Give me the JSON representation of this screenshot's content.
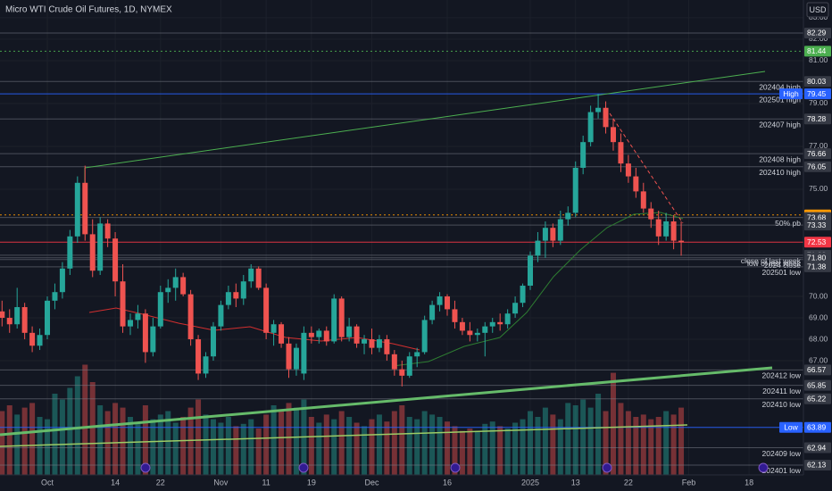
{
  "header": {
    "title": "Micro WTI Crude Oil Futures, 1D, NYMEX",
    "currency": "USD"
  },
  "chart_data": {
    "type": "candlestick",
    "colors": {
      "up": "#26a69a",
      "down": "#ef5350"
    },
    "candles": [
      [
        69.3,
        69.8,
        68.6,
        69.0
      ],
      [
        69.0,
        69.4,
        68.3,
        68.7
      ],
      [
        68.7,
        70.4,
        68.5,
        69.5
      ],
      [
        69.5,
        69.7,
        68.0,
        68.3
      ],
      [
        68.3,
        68.6,
        67.4,
        67.7
      ],
      [
        67.7,
        68.5,
        67.5,
        68.2
      ],
      [
        68.2,
        70.0,
        68.0,
        69.8
      ],
      [
        69.8,
        70.6,
        69.4,
        70.2
      ],
      [
        70.2,
        71.6,
        69.9,
        71.3
      ],
      [
        71.3,
        73.1,
        71.0,
        72.8
      ],
      [
        72.8,
        75.6,
        72.5,
        75.3
      ],
      [
        75.3,
        76.1,
        72.6,
        72.9
      ],
      [
        72.9,
        73.6,
        70.9,
        71.2
      ],
      [
        71.2,
        73.7,
        71.0,
        73.4
      ],
      [
        73.4,
        73.6,
        72.3,
        72.7
      ],
      [
        72.7,
        73.0,
        70.0,
        70.7
      ],
      [
        70.7,
        71.5,
        68.3,
        68.6
      ],
      [
        68.6,
        69.2,
        68.2,
        68.9
      ],
      [
        68.9,
        69.6,
        68.5,
        69.2
      ],
      [
        69.2,
        69.4,
        66.9,
        67.4
      ],
      [
        67.4,
        69.0,
        67.2,
        68.6
      ],
      [
        68.6,
        70.5,
        68.5,
        70.2
      ],
      [
        70.2,
        70.8,
        69.7,
        70.4
      ],
      [
        70.4,
        71.3,
        69.8,
        70.9
      ],
      [
        70.9,
        71.1,
        70.0,
        70.1
      ],
      [
        70.1,
        70.3,
        67.7,
        68.0
      ],
      [
        68.0,
        68.2,
        66.1,
        66.4
      ],
      [
        66.4,
        67.4,
        66.2,
        67.2
      ],
      [
        67.2,
        68.8,
        67.0,
        68.6
      ],
      [
        68.6,
        69.8,
        68.4,
        69.6
      ],
      [
        69.6,
        70.5,
        69.4,
        70.2
      ],
      [
        70.2,
        70.6,
        69.5,
        69.9
      ],
      [
        69.9,
        71.0,
        69.6,
        70.7
      ],
      [
        70.7,
        71.5,
        70.4,
        71.3
      ],
      [
        71.3,
        71.4,
        70.3,
        70.4
      ],
      [
        70.4,
        70.6,
        68.0,
        68.3
      ],
      [
        68.3,
        68.9,
        67.7,
        68.7
      ],
      [
        68.7,
        68.8,
        67.6,
        67.8
      ],
      [
        67.8,
        68.1,
        66.2,
        66.6
      ],
      [
        66.6,
        67.8,
        66.3,
        67.6
      ],
      [
        66.4,
        68.6,
        66.1,
        68.3
      ],
      [
        68.3,
        68.6,
        67.8,
        68.1
      ],
      [
        68.1,
        68.5,
        67.8,
        68.4
      ],
      [
        68.4,
        68.6,
        67.7,
        67.9
      ],
      [
        67.9,
        70.1,
        67.8,
        69.9
      ],
      [
        69.9,
        70.0,
        67.9,
        68.1
      ],
      [
        68.1,
        69.0,
        67.9,
        68.6
      ],
      [
        68.6,
        68.7,
        67.6,
        67.8
      ],
      [
        67.8,
        68.2,
        67.3,
        68.0
      ],
      [
        68.0,
        68.5,
        67.3,
        67.6
      ],
      [
        67.6,
        68.2,
        67.4,
        68.0
      ],
      [
        68.0,
        68.2,
        67.0,
        67.3
      ],
      [
        67.3,
        67.5,
        66.3,
        66.6
      ],
      [
        66.6,
        67.0,
        65.8,
        66.3
      ],
      [
        66.3,
        67.4,
        66.2,
        67.2
      ],
      [
        67.2,
        67.6,
        66.7,
        67.4
      ],
      [
        67.4,
        69.1,
        67.3,
        68.9
      ],
      [
        68.9,
        69.8,
        68.7,
        69.6
      ],
      [
        69.6,
        70.2,
        69.3,
        70.0
      ],
      [
        70.0,
        70.1,
        69.1,
        69.4
      ],
      [
        69.4,
        69.8,
        68.5,
        68.8
      ],
      [
        68.8,
        69.0,
        68.2,
        68.4
      ],
      [
        68.4,
        68.8,
        67.9,
        68.2
      ],
      [
        68.2,
        68.5,
        67.9,
        68.3
      ],
      [
        68.3,
        68.8,
        67.2,
        68.6
      ],
      [
        68.6,
        69.0,
        68.3,
        68.8
      ],
      [
        68.8,
        69.2,
        68.4,
        68.7
      ],
      [
        68.7,
        69.4,
        68.5,
        69.2
      ],
      [
        69.2,
        70.0,
        69.0,
        69.7
      ],
      [
        69.7,
        70.6,
        69.5,
        70.5
      ],
      [
        70.5,
        72.1,
        70.3,
        71.9
      ],
      [
        71.9,
        73.0,
        71.6,
        72.6
      ],
      [
        72.6,
        73.5,
        71.8,
        73.2
      ],
      [
        73.2,
        73.4,
        72.3,
        72.6
      ],
      [
        72.6,
        74.0,
        72.4,
        73.6
      ],
      [
        73.6,
        74.2,
        73.3,
        73.9
      ],
      [
        73.9,
        76.3,
        73.7,
        76.0
      ],
      [
        76.0,
        77.5,
        75.7,
        77.2
      ],
      [
        77.2,
        78.9,
        77.0,
        78.6
      ],
      [
        78.6,
        79.45,
        78.3,
        78.8
      ],
      [
        78.8,
        79.1,
        77.6,
        77.9
      ],
      [
        77.9,
        78.3,
        76.8,
        77.2
      ],
      [
        77.2,
        77.6,
        75.8,
        76.2
      ],
      [
        76.2,
        76.6,
        75.3,
        75.6
      ],
      [
        75.6,
        76.0,
        74.6,
        74.9
      ],
      [
        74.9,
        75.3,
        73.9,
        74.1
      ],
      [
        74.1,
        74.4,
        73.2,
        73.6
      ],
      [
        73.6,
        74.0,
        72.4,
        72.8
      ],
      [
        72.8,
        73.9,
        72.6,
        73.5
      ],
      [
        73.5,
        73.8,
        72.2,
        72.6
      ],
      [
        72.6,
        73.5,
        71.9,
        72.53
      ]
    ],
    "volume": [
      55,
      60,
      52,
      58,
      62,
      50,
      48,
      70,
      65,
      75,
      85,
      95,
      80,
      60,
      55,
      62,
      58,
      50,
      45,
      60,
      48,
      52,
      55,
      45,
      50,
      58,
      65,
      52,
      48,
      45,
      50,
      42,
      44,
      48,
      40,
      52,
      60,
      55,
      62,
      58,
      65,
      50,
      45,
      52,
      48,
      55,
      50,
      45,
      42,
      48,
      52,
      46,
      55,
      60,
      50,
      48,
      55,
      52,
      50,
      46,
      42,
      38,
      40,
      38,
      44,
      46,
      42,
      40,
      45,
      48,
      55,
      50,
      58,
      52,
      48,
      62,
      60,
      65,
      58,
      70,
      55,
      88,
      62,
      55,
      50,
      52,
      48,
      50,
      55,
      52,
      58
    ],
    "volume_ylim": [
      0,
      100
    ],
    "ylim": [
      61.67,
      83.83
    ],
    "yticks": [
      {
        "value": 83,
        "label": "83.00"
      },
      {
        "value": 82,
        "label": "82.00"
      },
      {
        "value": 81,
        "label": "81.00"
      },
      {
        "value": 79,
        "label": "79.00"
      },
      {
        "value": 77,
        "label": "77.00"
      },
      {
        "value": 75,
        "label": "75.00"
      },
      {
        "value": 70,
        "label": "70.00"
      },
      {
        "value": 69,
        "label": "69.00"
      },
      {
        "value": 68,
        "label": "68.00"
      },
      {
        "value": 67,
        "label": "67.00"
      }
    ],
    "xlim": [
      -0.27,
      106.2
    ],
    "xticks": [
      {
        "value": 6,
        "label": "Oct"
      },
      {
        "value": 15,
        "label": "14"
      },
      {
        "value": 21,
        "label": "22"
      },
      {
        "value": 29,
        "label": "Nov"
      },
      {
        "value": 35,
        "label": "11"
      },
      {
        "value": 41,
        "label": "19"
      },
      {
        "value": 49,
        "label": "Dec"
      },
      {
        "value": 59,
        "label": "16"
      },
      {
        "value": 70,
        "label": "2025"
      },
      {
        "value": 76,
        "label": "13"
      },
      {
        "value": 83,
        "label": "22"
      },
      {
        "value": 91,
        "label": "Feb"
      },
      {
        "value": 99,
        "label": "18"
      }
    ],
    "levels": [
      {
        "value": 82.29,
        "label": "82.29"
      },
      {
        "value": 81.44,
        "label": "81.44",
        "color": "#4caf50",
        "line": "dotted"
      },
      {
        "value": 80.03,
        "label": "80.03",
        "text": "202404 high"
      },
      {
        "value": 79.45,
        "label": "79.45",
        "text": "202501 high",
        "tag": "High",
        "color": "#2962ff"
      },
      {
        "value": 78.28,
        "label": "78.28",
        "text": "202407 high"
      },
      {
        "value": 76.66,
        "label": "76.66",
        "text": "202408 high"
      },
      {
        "value": 76.05,
        "label": "76.05",
        "text": "202410 high"
      },
      {
        "value": 73.8,
        "label": "73.80",
        "color": "#ff9800",
        "line": "dotted"
      },
      {
        "value": 73.68,
        "label": "73.68",
        "text": "50% pb"
      },
      {
        "value": 73.33,
        "label": "73.33"
      },
      {
        "value": 72.53,
        "label": "72.53",
        "color": "#f23645"
      },
      {
        "value": 71.92,
        "label": "71.92",
        "text": "close of last week"
      },
      {
        "value": 71.8,
        "label": "71.80",
        "text": "low of last week"
      },
      {
        "value": 71.72,
        "text": "2024 close"
      },
      {
        "value": 71.38,
        "label": "71.38",
        "text": "202501 low"
      },
      {
        "value": 66.57,
        "label": "66.57",
        "text": "202412 low"
      },
      {
        "value": 65.85,
        "label": "65.85",
        "text": "202411 low"
      },
      {
        "value": 65.22,
        "label": "65.22",
        "text": "202410 low"
      },
      {
        "value": 63.89,
        "label": "63.89",
        "tag": "Low",
        "color": "#2962ff"
      },
      {
        "value": 62.94,
        "label": "62.94",
        "text": "202409 low"
      },
      {
        "value": 62.13,
        "label": "62.13",
        "text": "202401 low"
      }
    ]
  }
}
